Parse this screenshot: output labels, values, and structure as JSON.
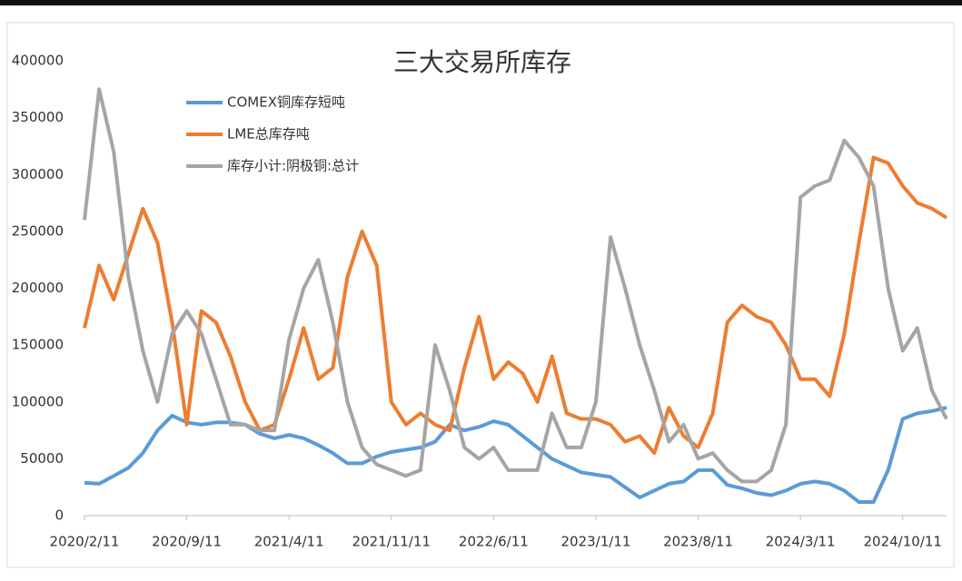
{
  "chart_data": {
    "type": "line",
    "title": "三大交易所库存",
    "categories": [
      "2020/2/11",
      null,
      null,
      null,
      null,
      null,
      null,
      "2020/9/11",
      null,
      null,
      null,
      null,
      null,
      null,
      "2021/4/11",
      null,
      null,
      null,
      null,
      null,
      null,
      "2021/11/11",
      null,
      null,
      null,
      null,
      null,
      null,
      "2022/6/11",
      null,
      null,
      null,
      null,
      null,
      null,
      "2023/1/11",
      null,
      null,
      null,
      null,
      null,
      null,
      "2023/8/11",
      null,
      null,
      null,
      null,
      null,
      null,
      "2024/3/11",
      null,
      null,
      null,
      null,
      null,
      null,
      "2024/10/11",
      null,
      null,
      null
    ],
    "series": [
      {
        "name": "COMEX铜库存短吨",
        "color": "#5b9bd5",
        "values": [
          29000,
          28000,
          35000,
          42000,
          55000,
          75000,
          88000,
          82000,
          80000,
          82000,
          82000,
          80000,
          72000,
          68000,
          71000,
          68000,
          62000,
          55000,
          46000,
          46000,
          52000,
          56000,
          58000,
          60000,
          65000,
          80000,
          75000,
          78000,
          83000,
          80000,
          70000,
          60000,
          50000,
          44000,
          38000,
          36000,
          34000,
          25000,
          16000,
          22000,
          28000,
          30000,
          40000,
          40000,
          27000,
          24000,
          20000,
          18000,
          22000,
          28000,
          30000,
          28000,
          22000,
          12000,
          12000,
          40000,
          85000,
          90000,
          92000,
          95000
        ]
      },
      {
        "name": "LME总库存吨",
        "color": "#ed7d31",
        "values": [
          165000,
          220000,
          190000,
          230000,
          270000,
          240000,
          170000,
          80000,
          180000,
          170000,
          140000,
          100000,
          75000,
          80000,
          120000,
          165000,
          120000,
          130000,
          210000,
          250000,
          220000,
          100000,
          80000,
          90000,
          80000,
          75000,
          130000,
          175000,
          120000,
          135000,
          125000,
          100000,
          140000,
          90000,
          85000,
          85000,
          80000,
          65000,
          70000,
          55000,
          95000,
          70000,
          60000,
          90000,
          170000,
          185000,
          175000,
          170000,
          150000,
          120000,
          120000,
          105000,
          160000,
          240000,
          315000,
          310000,
          290000,
          275000,
          270000,
          262000
        ]
      },
      {
        "name": "库存小计:阴极铜:总计",
        "color": "#a5a5a5",
        "values": [
          260000,
          375000,
          320000,
          210000,
          145000,
          100000,
          160000,
          180000,
          160000,
          120000,
          80000,
          80000,
          75000,
          75000,
          155000,
          200000,
          225000,
          170000,
          100000,
          60000,
          45000,
          40000,
          35000,
          40000,
          150000,
          110000,
          60000,
          50000,
          60000,
          40000,
          40000,
          40000,
          90000,
          60000,
          60000,
          100000,
          245000,
          200000,
          150000,
          110000,
          65000,
          80000,
          50000,
          55000,
          40000,
          30000,
          30000,
          40000,
          80000,
          280000,
          290000,
          295000,
          330000,
          315000,
          290000,
          200000,
          145000,
          165000,
          110000,
          85000
        ]
      }
    ],
    "ylim": [
      0,
      400000
    ],
    "yticks": [
      0,
      50000,
      100000,
      150000,
      200000,
      250000,
      300000,
      350000,
      400000
    ]
  }
}
